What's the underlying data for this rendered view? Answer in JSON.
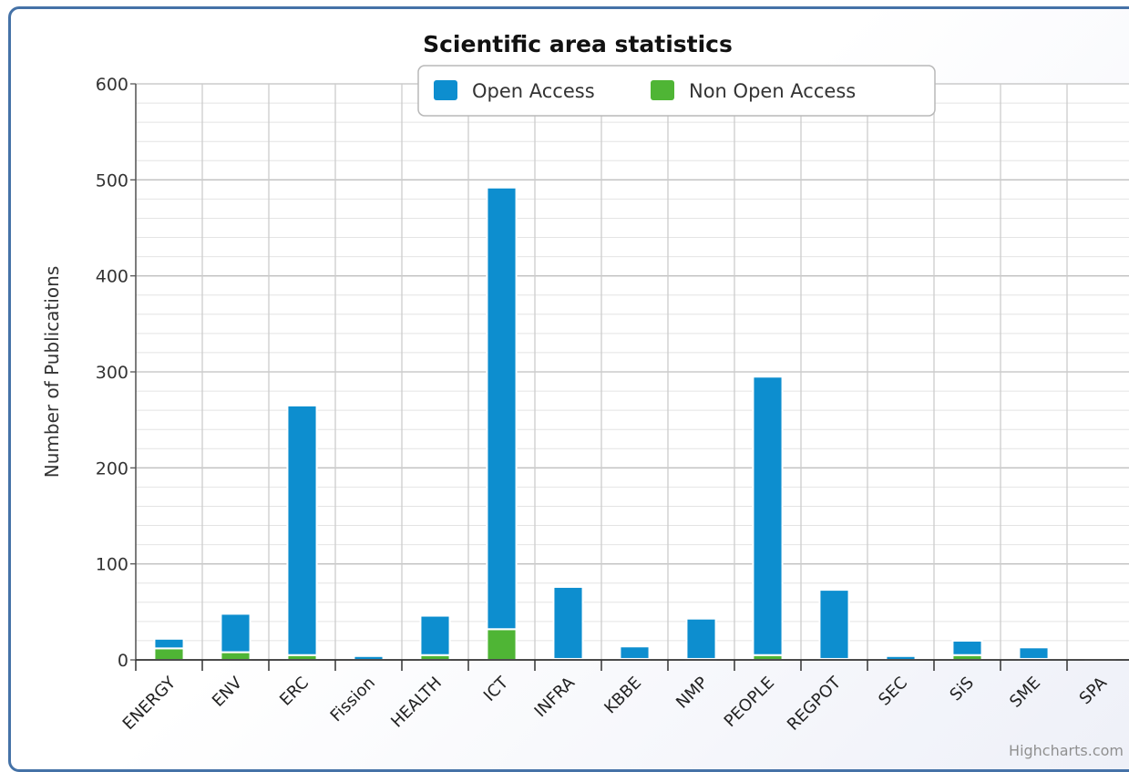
{
  "chart_data": {
    "type": "bar",
    "stacked": true,
    "title": "Scientific area statistics",
    "ylabel": "Number of Publications",
    "xlabel": "",
    "ylim": [
      0,
      600
    ],
    "yticks": [
      0,
      100,
      200,
      300,
      400,
      500,
      600
    ],
    "minor_grid_step": 20,
    "grid": true,
    "legend_placement": "top-center",
    "categories": [
      "ENERGY",
      "ENV",
      "ERC",
      "Fission",
      "HEALTH",
      "ICT",
      "INFRA",
      "KBBE",
      "NMP",
      "PEOPLE",
      "REGPOT",
      "SEC",
      "SiS",
      "SME",
      "SPA"
    ],
    "series": [
      {
        "name": "Open Access",
        "color": "#0d8ecf",
        "values": [
          10,
          40,
          260,
          4,
          41,
          460,
          75,
          13,
          42,
          290,
          72,
          4,
          15,
          12,
          1
        ]
      },
      {
        "name": "Non Open Access",
        "color": "#4fb535",
        "values": [
          12,
          8,
          5,
          0,
          5,
          32,
          1,
          1,
          1,
          5,
          1,
          0,
          5,
          1,
          1
        ]
      }
    ],
    "credit": "Highcharts.com"
  }
}
